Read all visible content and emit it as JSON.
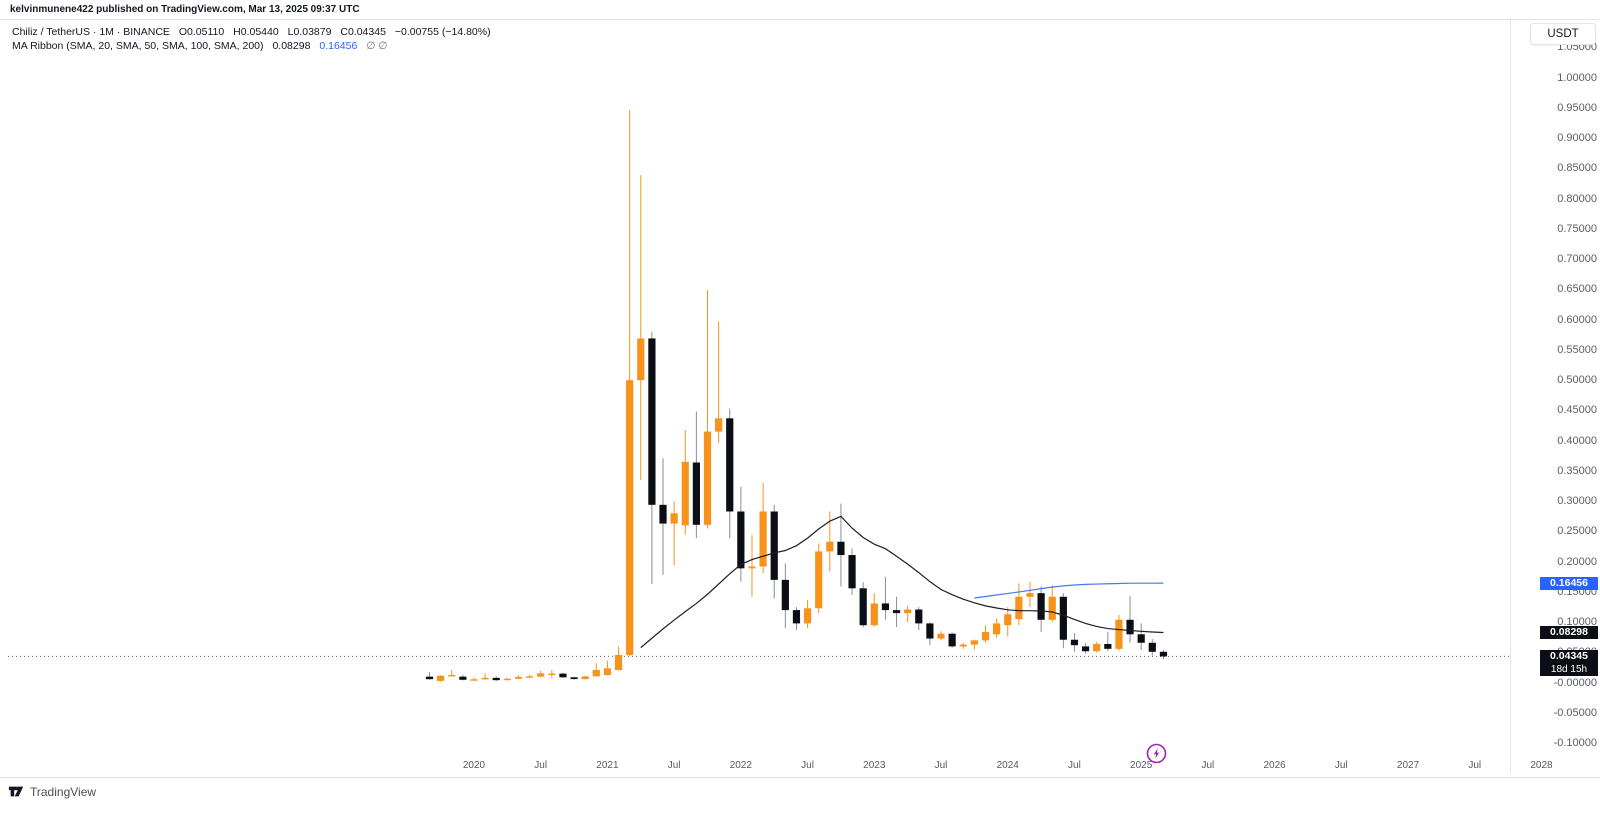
{
  "attribution": "kelvinmunene422 published on TradingView.com, Mar 13, 2025 09:37 UTC",
  "symbol": {
    "title": "Chiliz / TetherUS · 1M · BINANCE",
    "o_label": "O",
    "o": "0.05110",
    "h_label": "H",
    "h": "0.05440",
    "l_label": "L",
    "l": "0.03879",
    "c_label": "C",
    "c": "0.04345",
    "change": "−0.00755 (−14.80%)"
  },
  "indicator": {
    "label": "MA Ribbon (SMA, 20, SMA, 50, SMA, 100, SMA, 200)",
    "sma20_value": "0.08298",
    "sma50_value": "0.16456",
    "empty_values": "∅  ∅"
  },
  "right_axis": {
    "currency_button": "USDT",
    "ticks": [
      {
        "text": "1.05000",
        "value": 1.05
      },
      {
        "text": "1.00000",
        "value": 1.0
      },
      {
        "text": "0.95000",
        "value": 0.95
      },
      {
        "text": "0.90000",
        "value": 0.9
      },
      {
        "text": "0.85000",
        "value": 0.85
      },
      {
        "text": "0.80000",
        "value": 0.8
      },
      {
        "text": "0.75000",
        "value": 0.75
      },
      {
        "text": "0.70000",
        "value": 0.7
      },
      {
        "text": "0.65000",
        "value": 0.65
      },
      {
        "text": "0.60000",
        "value": 0.6
      },
      {
        "text": "0.55000",
        "value": 0.55
      },
      {
        "text": "0.50000",
        "value": 0.5
      },
      {
        "text": "0.45000",
        "value": 0.45
      },
      {
        "text": "0.40000",
        "value": 0.4
      },
      {
        "text": "0.35000",
        "value": 0.35
      },
      {
        "text": "0.30000",
        "value": 0.3
      },
      {
        "text": "0.25000",
        "value": 0.25
      },
      {
        "text": "0.20000",
        "value": 0.2
      },
      {
        "text": "0.15000",
        "value": 0.15
      },
      {
        "text": "0.10000",
        "value": 0.1
      },
      {
        "text": "0.05000",
        "value": 0.05
      },
      {
        "text": "-0.00000",
        "value": 0.0
      },
      {
        "text": "-0.05000",
        "value": -0.05
      },
      {
        "text": "-0.10000",
        "value": -0.1
      }
    ],
    "tags": [
      {
        "text": "0.16456",
        "value": 0.16456,
        "bg": "#2962ff"
      },
      {
        "text": "0.08298",
        "value": 0.08298,
        "bg": "#0c0e15"
      },
      {
        "text": "0.04345",
        "value": 0.04345,
        "bg": "#0c0e15",
        "countdown": "18d 15h"
      }
    ]
  },
  "time_axis": {
    "labels": [
      {
        "text": "2020",
        "bar": 4
      },
      {
        "text": "Jul",
        "bar": 10
      },
      {
        "text": "2021",
        "bar": 16
      },
      {
        "text": "Jul",
        "bar": 22
      },
      {
        "text": "2022",
        "bar": 28
      },
      {
        "text": "Jul",
        "bar": 34
      },
      {
        "text": "2023",
        "bar": 40
      },
      {
        "text": "Jul",
        "bar": 46
      },
      {
        "text": "2024",
        "bar": 52
      },
      {
        "text": "Jul",
        "bar": 58
      },
      {
        "text": "2025",
        "bar": 64
      },
      {
        "text": "Jul",
        "bar": 70
      },
      {
        "text": "2026",
        "bar": 76
      },
      {
        "text": "Jul",
        "bar": 82
      },
      {
        "text": "2027",
        "bar": 88
      },
      {
        "text": "Jul",
        "bar": 94
      },
      {
        "text": "2028",
        "bar": 100
      }
    ]
  },
  "footer": {
    "brand": "TradingView"
  },
  "colors": {
    "up": "#f7931a",
    "down": "#0c0e15",
    "down_wick": "#8a8d98",
    "sma20_line": "#1c1e23",
    "sma50_line": "#4678f0",
    "price_line": "#555963",
    "bolt": "#9c27b0"
  },
  "chart_data": {
    "type": "candlestick",
    "title": "Chiliz / TetherUS 1M BINANCE with MA Ribbon (SMA20, SMA50, SMA100, SMA200)",
    "ylim": [
      -0.1,
      1.05
    ],
    "current_price": 0.04345,
    "months": [
      "2019-09",
      "2019-10",
      "2019-11",
      "2019-12",
      "2020-01",
      "2020-02",
      "2020-03",
      "2020-04",
      "2020-05",
      "2020-06",
      "2020-07",
      "2020-08",
      "2020-09",
      "2020-10",
      "2020-11",
      "2020-12",
      "2021-01",
      "2021-02",
      "2021-03",
      "2021-04",
      "2021-05",
      "2021-06",
      "2021-07",
      "2021-08",
      "2021-09",
      "2021-10",
      "2021-11",
      "2021-12",
      "2022-01",
      "2022-02",
      "2022-03",
      "2022-04",
      "2022-05",
      "2022-06",
      "2022-07",
      "2022-08",
      "2022-09",
      "2022-10",
      "2022-11",
      "2022-12",
      "2023-01",
      "2023-02",
      "2023-03",
      "2023-04",
      "2023-05",
      "2023-06",
      "2023-07",
      "2023-08",
      "2023-09",
      "2023-10",
      "2023-11",
      "2023-12",
      "2024-01",
      "2024-02",
      "2024-03",
      "2024-04",
      "2024-05",
      "2024-06",
      "2024-07",
      "2024-08",
      "2024-09",
      "2024-10",
      "2024-11",
      "2024-12",
      "2025-01",
      "2025-02",
      "2025-03"
    ],
    "ohlc": [
      [
        0.01,
        0.0172,
        0.005,
        0.0058
      ],
      [
        0.003,
        0.0125,
        0.0015,
        0.0115
      ],
      [
        0.0115,
        0.021,
        0.0105,
        0.0127
      ],
      [
        0.01,
        0.013,
        0.0038,
        0.0048
      ],
      [
        0.005,
        0.0085,
        0.0042,
        0.0056
      ],
      [
        0.0056,
        0.0155,
        0.005,
        0.008
      ],
      [
        0.008,
        0.0105,
        0.0028,
        0.0042
      ],
      [
        0.0042,
        0.008,
        0.004,
        0.0065
      ],
      [
        0.0065,
        0.0127,
        0.0058,
        0.0095
      ],
      [
        0.0095,
        0.013,
        0.0085,
        0.0105
      ],
      [
        0.01,
        0.0198,
        0.009,
        0.0155
      ],
      [
        0.014,
        0.021,
        0.0077,
        0.015
      ],
      [
        0.015,
        0.0165,
        0.008,
        0.0089
      ],
      [
        0.0089,
        0.01,
        0.005,
        0.006
      ],
      [
        0.006,
        0.0115,
        0.0052,
        0.0105
      ],
      [
        0.0105,
        0.032,
        0.01,
        0.021
      ],
      [
        0.0127,
        0.0364,
        0.012,
        0.0238
      ],
      [
        0.021,
        0.0595,
        0.02,
        0.0458
      ],
      [
        0.0458,
        0.947,
        0.044,
        0.5
      ],
      [
        0.5,
        0.839,
        0.335,
        0.569
      ],
      [
        0.569,
        0.58,
        0.163,
        0.294
      ],
      [
        0.294,
        0.371,
        0.178,
        0.263
      ],
      [
        0.263,
        0.3,
        0.194,
        0.28
      ],
      [
        0.26,
        0.418,
        0.245,
        0.365
      ],
      [
        0.364,
        0.448,
        0.239,
        0.261
      ],
      [
        0.261,
        0.649,
        0.255,
        0.415
      ],
      [
        0.415,
        0.597,
        0.396,
        0.437
      ],
      [
        0.437,
        0.453,
        0.239,
        0.283
      ],
      [
        0.283,
        0.324,
        0.167,
        0.189
      ],
      [
        0.189,
        0.244,
        0.142,
        0.192
      ],
      [
        0.192,
        0.33,
        0.181,
        0.283
      ],
      [
        0.283,
        0.294,
        0.139,
        0.17
      ],
      [
        0.17,
        0.197,
        0.09,
        0.12
      ],
      [
        0.12,
        0.125,
        0.087,
        0.098
      ],
      [
        0.098,
        0.137,
        0.09,
        0.123
      ],
      [
        0.123,
        0.23,
        0.115,
        0.217
      ],
      [
        0.217,
        0.283,
        0.184,
        0.233
      ],
      [
        0.233,
        0.296,
        0.159,
        0.211
      ],
      [
        0.211,
        0.222,
        0.145,
        0.156
      ],
      [
        0.156,
        0.166,
        0.0915,
        0.095
      ],
      [
        0.095,
        0.148,
        0.093,
        0.131
      ],
      [
        0.131,
        0.175,
        0.104,
        0.12
      ],
      [
        0.12,
        0.142,
        0.092,
        0.115
      ],
      [
        0.115,
        0.127,
        0.1,
        0.121
      ],
      [
        0.121,
        0.125,
        0.087,
        0.098
      ],
      [
        0.098,
        0.1,
        0.062,
        0.073
      ],
      [
        0.073,
        0.085,
        0.07,
        0.081
      ],
      [
        0.081,
        0.083,
        0.058,
        0.06
      ],
      [
        0.06,
        0.066,
        0.056,
        0.063
      ],
      [
        0.063,
        0.071,
        0.055,
        0.07
      ],
      [
        0.07,
        0.095,
        0.066,
        0.084
      ],
      [
        0.08,
        0.106,
        0.074,
        0.098
      ],
      [
        0.095,
        0.125,
        0.076,
        0.113
      ],
      [
        0.105,
        0.164,
        0.095,
        0.142
      ],
      [
        0.142,
        0.167,
        0.125,
        0.148
      ],
      [
        0.148,
        0.159,
        0.084,
        0.104
      ],
      [
        0.104,
        0.161,
        0.1,
        0.142
      ],
      [
        0.142,
        0.148,
        0.057,
        0.071
      ],
      [
        0.071,
        0.082,
        0.051,
        0.062
      ],
      [
        0.06,
        0.066,
        0.048,
        0.052
      ],
      [
        0.052,
        0.068,
        0.05,
        0.064
      ],
      [
        0.064,
        0.084,
        0.052,
        0.056
      ],
      [
        0.056,
        0.112,
        0.053,
        0.104
      ],
      [
        0.104,
        0.143,
        0.066,
        0.08
      ],
      [
        0.08,
        0.098,
        0.054,
        0.066
      ],
      [
        0.066,
        0.072,
        0.045,
        0.0511
      ],
      [
        0.0511,
        0.0544,
        0.0388,
        0.0434
      ]
    ],
    "sma20_start_bar": 19,
    "sma20": [
      0.058,
      0.0735,
      0.089,
      0.1035,
      0.1175,
      0.131,
      0.146,
      0.163,
      0.18,
      0.1955,
      0.2035,
      0.209,
      0.2145,
      0.2185,
      0.2265,
      0.239,
      0.254,
      0.267,
      0.275,
      0.2555,
      0.24,
      0.229,
      0.2215,
      0.209,
      0.196,
      0.182,
      0.167,
      0.154,
      0.1455,
      0.138,
      0.132,
      0.127,
      0.1235,
      0.1205,
      0.119,
      0.119,
      0.1185,
      0.117,
      0.1115,
      0.1045,
      0.098,
      0.093,
      0.0895,
      0.0878,
      0.0863,
      0.0849,
      0.0838,
      0.08298
    ],
    "sma50_start_bar": 49,
    "sma50": [
      0.14,
      0.1425,
      0.145,
      0.1475,
      0.15,
      0.1525,
      0.1555,
      0.158,
      0.16,
      0.1615,
      0.1625,
      0.163,
      0.1635,
      0.164,
      0.1645,
      0.1645,
      0.1645,
      0.16456
    ]
  }
}
